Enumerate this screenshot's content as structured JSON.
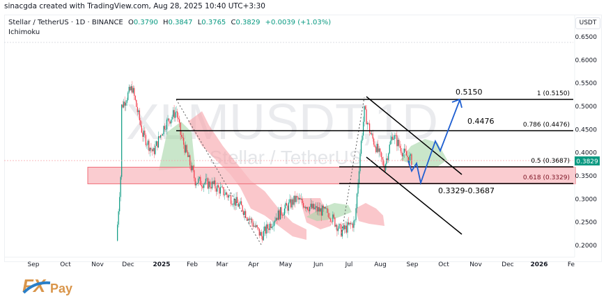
{
  "header": {
    "credit": "sinacgda created with TradingView.com, Aug 28, 2025 10:40 UTC+3:30",
    "symbol_desc": "Stellar / TetherUS · 1D · BINANCE",
    "ohlc": {
      "o_label": "O",
      "o": "0.3790",
      "h_label": "H",
      "h": "0.3847",
      "l_label": "L",
      "l": "0.3765",
      "c_label": "C",
      "c": "0.3829",
      "change": "+0.0039 (+1.03%)"
    },
    "indicator": "Ichimoku",
    "currency": "USDT"
  },
  "watermark": {
    "ticker": "XLMUSDT,1D",
    "name": "Stellar / TetherUS"
  },
  "colors": {
    "up": "#089981",
    "down": "#f23645",
    "price_badge": "#089981",
    "zone_fill": "#f8bbc0",
    "zone_border": "#f06b77",
    "projection": "#1f5fd1",
    "cloud_bull": "#a5d6a7",
    "cloud_bear": "#f7a1a8",
    "line": "#000000"
  },
  "chart_data": {
    "type": "candlestick",
    "title": "Stellar / TetherUS · 1D · BINANCE",
    "ylabel": "USDT",
    "ylim": [
      0.18,
      0.66
    ],
    "y_ticks": [
      "0.6500",
      "0.6000",
      "0.5500",
      "0.5000",
      "0.4500",
      "0.4000",
      "0.3500",
      "0.3000",
      "0.2500",
      "0.2000"
    ],
    "x_ticks": [
      "Sep",
      "Oct",
      "Nov",
      "Dec",
      "2025",
      "Feb",
      "Mar",
      "Apr",
      "May",
      "Jun",
      "Jul",
      "Aug",
      "Sep",
      "Oct",
      "Nov",
      "Dec",
      "2026",
      "Fe"
    ],
    "last_price": "0.3829",
    "approx_closes": [
      {
        "date": "2024-11-20",
        "price": 0.21
      },
      {
        "date": "2024-11-24",
        "price": 0.35
      },
      {
        "date": "2024-11-25",
        "price": 0.5
      },
      {
        "date": "2024-12-02",
        "price": 0.53
      },
      {
        "date": "2024-12-05",
        "price": 0.54
      },
      {
        "date": "2024-12-15",
        "price": 0.44
      },
      {
        "date": "2024-12-25",
        "price": 0.4
      },
      {
        "date": "2025-01-05",
        "price": 0.46
      },
      {
        "date": "2025-01-16",
        "price": 0.49
      },
      {
        "date": "2025-01-20",
        "price": 0.44
      },
      {
        "date": "2025-02-03",
        "price": 0.34
      },
      {
        "date": "2025-02-20",
        "price": 0.33
      },
      {
        "date": "2025-03-05",
        "price": 0.31
      },
      {
        "date": "2025-03-20",
        "price": 0.28
      },
      {
        "date": "2025-04-07",
        "price": 0.22
      },
      {
        "date": "2025-04-20",
        "price": 0.26
      },
      {
        "date": "2025-05-10",
        "price": 0.3
      },
      {
        "date": "2025-05-25",
        "price": 0.28
      },
      {
        "date": "2025-06-10",
        "price": 0.27
      },
      {
        "date": "2025-06-22",
        "price": 0.23
      },
      {
        "date": "2025-07-05",
        "price": 0.25
      },
      {
        "date": "2025-07-10",
        "price": 0.4
      },
      {
        "date": "2025-07-14",
        "price": 0.49
      },
      {
        "date": "2025-07-20",
        "price": 0.44
      },
      {
        "date": "2025-08-02",
        "price": 0.37
      },
      {
        "date": "2025-08-10",
        "price": 0.44
      },
      {
        "date": "2025-08-20",
        "price": 0.4
      },
      {
        "date": "2025-08-28",
        "price": 0.3829
      }
    ],
    "fib_levels": [
      {
        "ratio": "1",
        "value": 0.515,
        "label": "1 (0.5150)"
      },
      {
        "ratio": "0.786",
        "value": 0.4476,
        "label": "0.786 (0.4476)"
      },
      {
        "ratio": "0.5",
        "value": 0.3687,
        "label": "0.5 (0.3687)"
      },
      {
        "ratio": "0.618",
        "value": 0.3329,
        "label": "0.618 (0.3329)"
      }
    ],
    "annotations": [
      {
        "text": "0.5150",
        "kind": "target"
      },
      {
        "text": "0.4476",
        "kind": "target"
      },
      {
        "text": "0.3329-0.3687",
        "kind": "support-zone"
      }
    ],
    "support_zone": [
      0.3329,
      0.3687
    ],
    "projection_path": [
      0.3829,
      0.35,
      0.365,
      0.335,
      0.42,
      0.4,
      0.52
    ],
    "grid": false,
    "legend_position": "top-left"
  },
  "labels": {
    "fib_1": "1 (0.5150)",
    "fib_0786": "0.786 (0.4476)",
    "fib_05": "0.5 (0.3687)",
    "fib_0618": "0.618 (0.3329)",
    "target_1": "0.5150",
    "target_2": "0.4476",
    "zone": "0.3329-0.3687"
  },
  "logo": {
    "fx": "FX",
    "pay": "Pay"
  }
}
